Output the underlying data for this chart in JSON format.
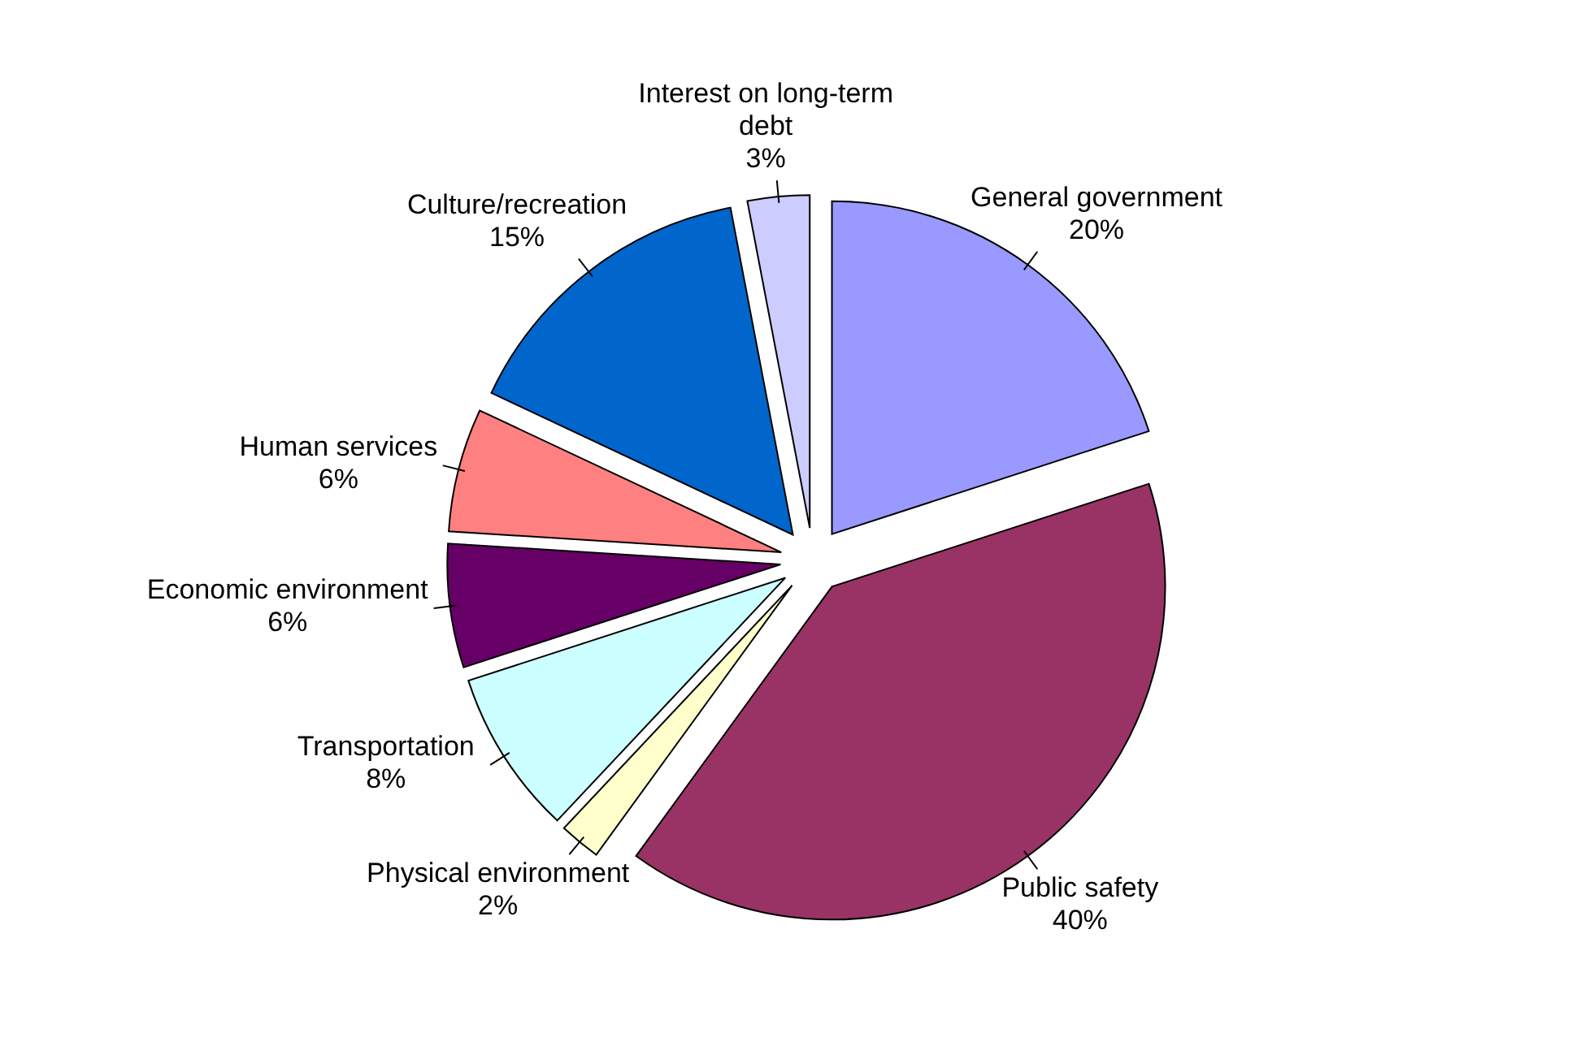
{
  "chart_data": {
    "type": "pie",
    "categories": [
      "General government",
      "Public safety",
      "Physical environment",
      "Transportation",
      "Economic environment",
      "Human services",
      "Culture/recreation",
      "Interest on long-term debt"
    ],
    "values": [
      20,
      40,
      2,
      8,
      6,
      6,
      15,
      3
    ],
    "value_labels": [
      "20%",
      "40%",
      "2%",
      "8%",
      "6%",
      "6%",
      "15%",
      "3%"
    ],
    "colors": [
      "#9999ff",
      "#993366",
      "#ffffcc",
      "#ccffff",
      "#660066",
      "#ff8080",
      "#0066cc",
      "#ccccff"
    ]
  }
}
